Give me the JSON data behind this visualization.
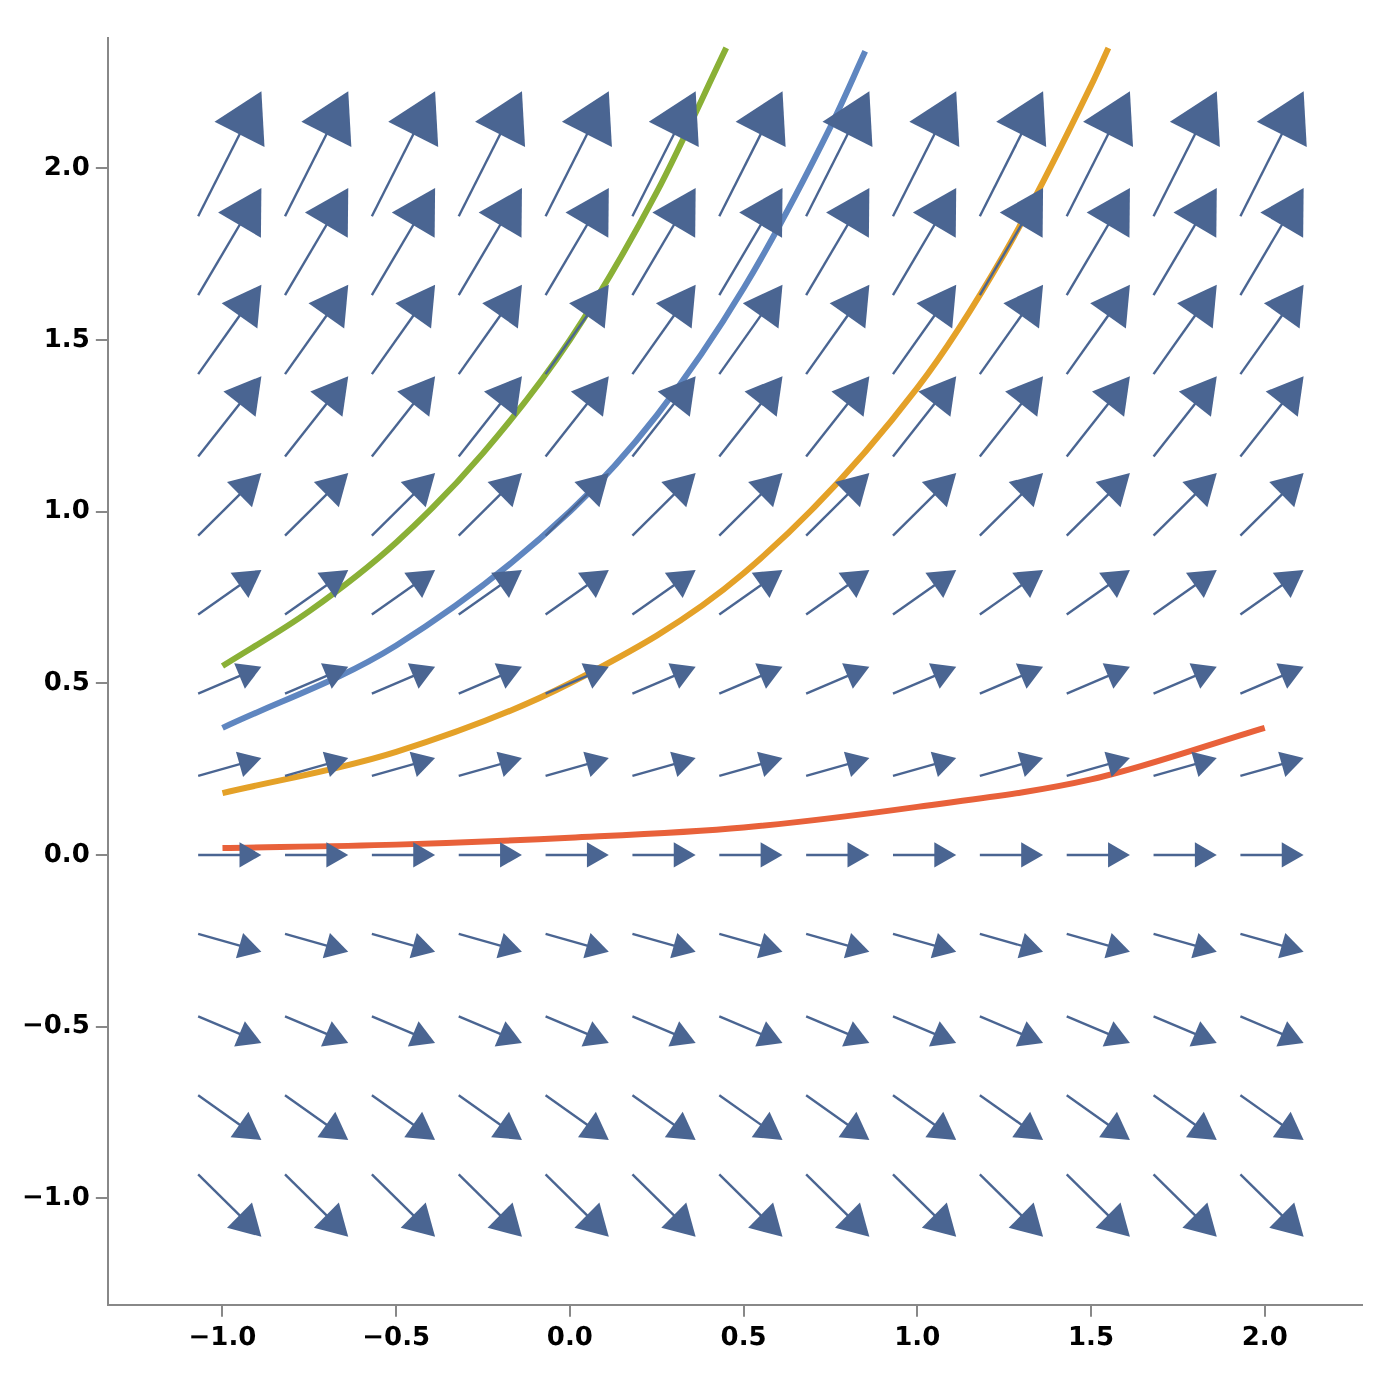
{
  "chart_data": {
    "type": "line",
    "xlim": [
      -1.33,
      2.28
    ],
    "ylim": [
      -1.31,
      2.38
    ],
    "xticks": [
      {
        "value": -1,
        "label": "−1.0"
      },
      {
        "value": -0.5,
        "label": "−0.5"
      },
      {
        "value": 0,
        "label": "0.0"
      },
      {
        "value": 0.5,
        "label": "0.5"
      },
      {
        "value": 1,
        "label": "1.0"
      },
      {
        "value": 1.5,
        "label": "1.5"
      },
      {
        "value": 2,
        "label": "2.0"
      }
    ],
    "yticks": [
      {
        "value": -1,
        "label": "−1.0"
      },
      {
        "value": -0.5,
        "label": "−0.5"
      },
      {
        "value": 0,
        "label": "0.0"
      },
      {
        "value": 0.5,
        "label": "0.5"
      },
      {
        "value": 1,
        "label": "1.0"
      },
      {
        "value": 1.5,
        "label": "1.5"
      },
      {
        "value": 2,
        "label": "2.0"
      }
    ],
    "grid": false,
    "legend": false,
    "x": [
      -1.07,
      -0.93,
      -0.82,
      -0.68,
      -0.57,
      -0.43,
      -0.32,
      -0.18,
      -0.07,
      0.07,
      0.18,
      0.32,
      0.43,
      0.57,
      0.68,
      0.82,
      0.93,
      1.07,
      1.18,
      1.32,
      1.43,
      1.57,
      1.68,
      1.82,
      1.93,
      2.07
    ],
    "series": [
      {
        "color": "#4a6592",
        "marker": "triangle",
        "values": [
          1.86,
          2.14,
          1.86,
          2.14,
          1.86,
          2.14,
          1.86,
          2.14,
          1.86,
          2.14,
          1.86,
          2.14,
          1.86,
          2.14,
          1.86,
          2.14,
          1.86,
          2.14,
          1.86,
          2.14,
          1.86,
          2.14,
          1.86,
          2.14,
          1.86,
          2.14
        ]
      },
      {
        "color": "#4a6592",
        "marker": "triangle",
        "values": [
          1.63,
          1.87,
          1.63,
          1.87,
          1.63,
          1.87,
          1.63,
          1.87,
          1.63,
          1.87,
          1.63,
          1.87,
          1.63,
          1.87,
          1.63,
          1.87,
          1.63,
          1.87,
          1.63,
          1.87,
          1.63,
          1.87,
          1.63,
          1.87,
          1.63,
          1.87
        ]
      },
      {
        "color": "#4a6592",
        "marker": "triangle",
        "values": [
          1.4,
          1.6,
          1.4,
          1.6,
          1.4,
          1.6,
          1.4,
          1.6,
          1.4,
          1.6,
          1.4,
          1.6,
          1.4,
          1.6,
          1.4,
          1.6,
          1.4,
          1.6,
          1.4,
          1.6,
          1.4,
          1.6,
          1.4,
          1.6,
          1.4,
          1.6
        ]
      },
      {
        "color": "#4a6592",
        "marker": "triangle",
        "values": [
          1.16,
          1.34,
          1.16,
          1.34,
          1.16,
          1.34,
          1.16,
          1.34,
          1.16,
          1.34,
          1.16,
          1.34,
          1.16,
          1.34,
          1.16,
          1.34,
          1.16,
          1.34,
          1.16,
          1.34,
          1.16,
          1.34,
          1.16,
          1.34,
          1.16,
          1.34
        ]
      },
      {
        "color": "#4a6592",
        "marker": "triangle",
        "values": [
          0.93,
          1.07,
          0.93,
          1.07,
          0.93,
          1.07,
          0.93,
          1.07,
          0.93,
          1.07,
          0.93,
          1.07,
          0.93,
          1.07,
          0.93,
          1.07,
          0.93,
          1.07,
          0.93,
          1.07,
          0.93,
          1.07,
          0.93,
          1.07,
          0.93,
          1.07
        ]
      },
      {
        "color": "#4a6592",
        "marker": "triangle",
        "values": [
          0.7,
          0.8,
          0.7,
          0.8,
          0.7,
          0.8,
          0.7,
          0.8,
          0.7,
          0.8,
          0.7,
          0.8,
          0.7,
          0.8,
          0.7,
          0.8,
          0.7,
          0.8,
          0.7,
          0.8,
          0.7,
          0.8,
          0.7,
          0.8,
          0.7,
          0.8
        ]
      },
      {
        "color": "#4a6592",
        "marker": "triangle",
        "values": [
          0.47,
          0.53,
          0.47,
          0.53,
          0.47,
          0.53,
          0.47,
          0.53,
          0.47,
          0.53,
          0.47,
          0.53,
          0.47,
          0.53,
          0.47,
          0.53,
          0.47,
          0.53,
          0.47,
          0.53,
          0.47,
          0.53,
          0.47,
          0.53,
          0.47,
          0.53
        ]
      },
      {
        "color": "#4a6592",
        "marker": "triangle",
        "values": [
          0.23,
          0.27,
          0.23,
          0.27,
          0.23,
          0.27,
          0.23,
          0.27,
          0.23,
          0.27,
          0.23,
          0.27,
          0.23,
          0.27,
          0.23,
          0.27,
          0.23,
          0.27,
          0.23,
          0.27,
          0.23,
          0.27,
          0.23,
          0.27,
          0.23,
          0.27
        ]
      },
      {
        "color": "#4a6592",
        "marker": "triangle",
        "values": [
          0,
          0,
          0,
          0,
          0,
          0,
          0,
          0,
          0,
          0,
          0,
          0,
          0,
          0,
          0,
          0,
          0,
          0,
          0,
          0,
          0,
          0,
          0,
          0,
          0,
          0
        ]
      },
      {
        "color": "#4a6592",
        "marker": "triangle",
        "values": [
          -0.23,
          -0.27,
          -0.23,
          -0.27,
          -0.23,
          -0.27,
          -0.23,
          -0.27,
          -0.23,
          -0.27,
          -0.23,
          -0.27,
          -0.23,
          -0.27,
          -0.23,
          -0.27,
          -0.23,
          -0.27,
          -0.23,
          -0.27,
          -0.23,
          -0.27,
          -0.23,
          -0.27,
          -0.23,
          -0.27
        ]
      },
      {
        "color": "#4a6592",
        "marker": "triangle",
        "values": [
          -0.47,
          -0.53,
          -0.47,
          -0.53,
          -0.47,
          -0.53,
          -0.47,
          -0.53,
          -0.47,
          -0.53,
          -0.47,
          -0.53,
          -0.47,
          -0.53,
          -0.47,
          -0.53,
          -0.47,
          -0.53,
          -0.47,
          -0.53,
          -0.47,
          -0.53,
          -0.47,
          -0.53,
          -0.47,
          -0.53
        ]
      },
      {
        "color": "#4a6592",
        "marker": "triangle",
        "values": [
          -0.7,
          -0.8,
          -0.7,
          -0.8,
          -0.7,
          -0.8,
          -0.7,
          -0.8,
          -0.7,
          -0.8,
          -0.7,
          -0.8,
          -0.7,
          -0.8,
          -0.7,
          -0.8,
          -0.7,
          -0.8,
          -0.7,
          -0.8,
          -0.7,
          -0.8,
          -0.7,
          -0.8,
          -0.7,
          -0.8
        ]
      },
      {
        "color": "#4a6592",
        "marker": "triangle",
        "values": [
          -0.93,
          -1.07,
          -0.93,
          -1.07,
          -0.93,
          -1.07,
          -0.93,
          -1.07,
          -0.93,
          -1.07,
          -0.93,
          -1.07,
          -0.93,
          -1.07,
          -0.93,
          -1.07,
          -0.93,
          -1.07,
          -0.93,
          -1.07,
          -0.93,
          -1.07,
          -0.93,
          -1.07,
          -0.93,
          -1.07
        ]
      },
      {
        "color": "#e8613a",
        "marker": "none",
        "x": [
          -1,
          -0.5,
          0,
          0.5,
          1,
          1.5,
          2
        ],
        "values": [
          0.02,
          0.03,
          0.05,
          0.08,
          0.14,
          0.22,
          0.37
        ]
      },
      {
        "color": "#e4a128",
        "marker": "none",
        "x": [
          -1,
          -0.5,
          0,
          0.5,
          1,
          1.25,
          1.5,
          1.55
        ],
        "values": [
          0.18,
          0.3,
          0.5,
          0.82,
          1.36,
          1.75,
          2.24,
          2.35
        ]
      },
      {
        "color": "#5f86c0",
        "marker": "none",
        "x": [
          -1,
          -0.5,
          0,
          0.25,
          0.5,
          0.75,
          0.85
        ],
        "values": [
          0.37,
          0.61,
          1.0,
          1.28,
          1.65,
          2.12,
          2.34
        ]
      },
      {
        "color": "#8ab036",
        "marker": "none",
        "x": [
          -1,
          -0.75,
          -0.5,
          -0.25,
          0,
          0.25,
          0.45
        ],
        "values": [
          0.55,
          0.71,
          0.91,
          1.17,
          1.5,
          1.93,
          2.35
        ]
      }
    ]
  }
}
